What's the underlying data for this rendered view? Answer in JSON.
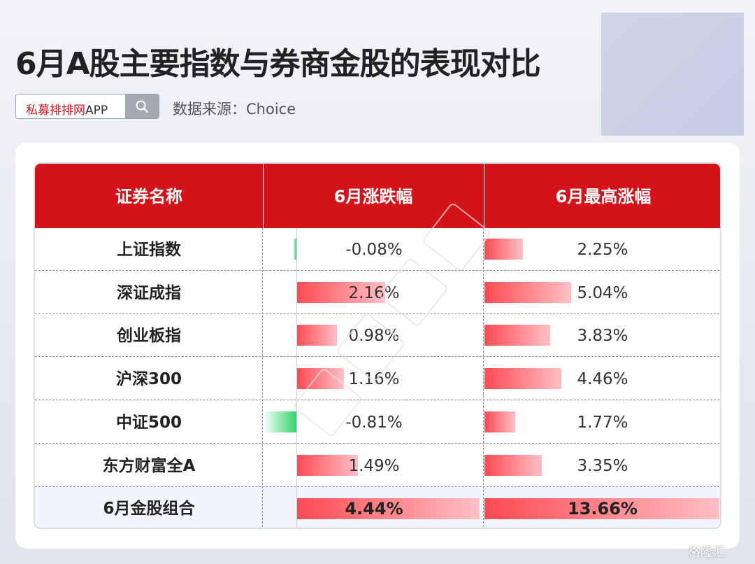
{
  "title": "6月A股主要指数与券商金股的表现对比",
  "search": {
    "brand": "私募排排网",
    "app": "APP"
  },
  "source": "数据来源：Choice",
  "corner_logo": "格隆汇",
  "table": {
    "headers": [
      "证券名称",
      "6月涨跌幅",
      "6月最高涨幅"
    ]
  },
  "colors": {
    "header_red": "#d41219",
    "positive": "#ff4a52",
    "negative": "#2fd56b"
  },
  "chart_data": {
    "type": "table",
    "columns": [
      "证券名称",
      "6月涨跌幅",
      "6月最高涨幅"
    ],
    "rows": [
      {
        "name": "上证指数",
        "change": -0.08,
        "change_label": "-0.08%",
        "high": 2.25,
        "high_label": "2.25%"
      },
      {
        "name": "深证成指",
        "change": 2.16,
        "change_label": "2.16%",
        "high": 5.04,
        "high_label": "5.04%"
      },
      {
        "name": "创业板指",
        "change": 0.98,
        "change_label": "0.98%",
        "high": 3.83,
        "high_label": "3.83%"
      },
      {
        "name": "沪深300",
        "change": 1.16,
        "change_label": "1.16%",
        "high": 4.46,
        "high_label": "4.46%"
      },
      {
        "name": "中证500",
        "change": -0.81,
        "change_label": "-0.81%",
        "high": 1.77,
        "high_label": "1.77%"
      },
      {
        "name": "东方财富全A",
        "change": 1.49,
        "change_label": "1.49%",
        "high": 3.35,
        "high_label": "3.35%"
      },
      {
        "name": "6月金股组合",
        "change": 4.44,
        "change_label": "4.44%",
        "high": 13.66,
        "high_label": "13.66%"
      }
    ]
  }
}
